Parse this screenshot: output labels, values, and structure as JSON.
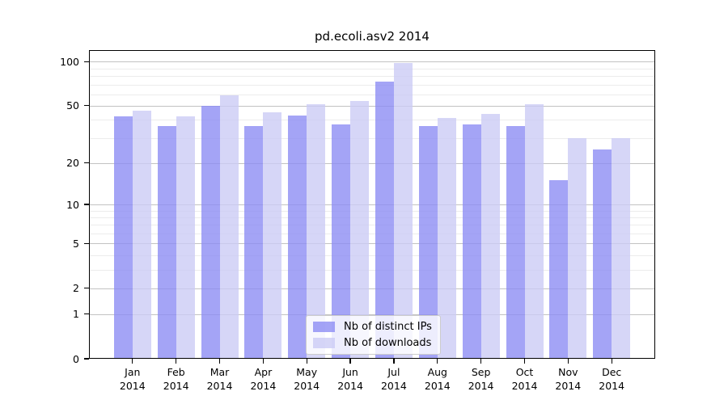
{
  "chart_data": {
    "type": "bar",
    "title": "pd.ecoli.asv2 2014",
    "year_label": "2014",
    "categories": [
      "Jan",
      "Feb",
      "Mar",
      "Apr",
      "May",
      "Jun",
      "Jul",
      "Aug",
      "Sep",
      "Oct",
      "Nov",
      "Dec"
    ],
    "series": [
      {
        "name": "Nb of distinct IPs",
        "color": "rgba(138,138,243,0.78)",
        "values": [
          42,
          36,
          50,
          36,
          43,
          37,
          73,
          36,
          37,
          36,
          15,
          25
        ]
      },
      {
        "name": "Nb of downloads",
        "color": "rgba(202,202,245,0.78)",
        "values": [
          46,
          42,
          59,
          45,
          51,
          54,
          98,
          41,
          44,
          51,
          30,
          30
        ]
      }
    ],
    "yscale": "log1p",
    "yticks": [
      0,
      1,
      2,
      5,
      10,
      20,
      50,
      100
    ],
    "minor_yticks": [
      3,
      4,
      6,
      7,
      8,
      9,
      30,
      40,
      60,
      70,
      80,
      90
    ],
    "ylim": [
      0,
      120
    ],
    "xlabel": "",
    "ylabel": "",
    "grid": "horizontal-major-and-minor",
    "legend_position": "lower center",
    "colors": {
      "major_grid": "#c2c2c2",
      "minor_grid": "#ececec",
      "spine": "#000000",
      "legend_border": "#cccccc"
    }
  }
}
